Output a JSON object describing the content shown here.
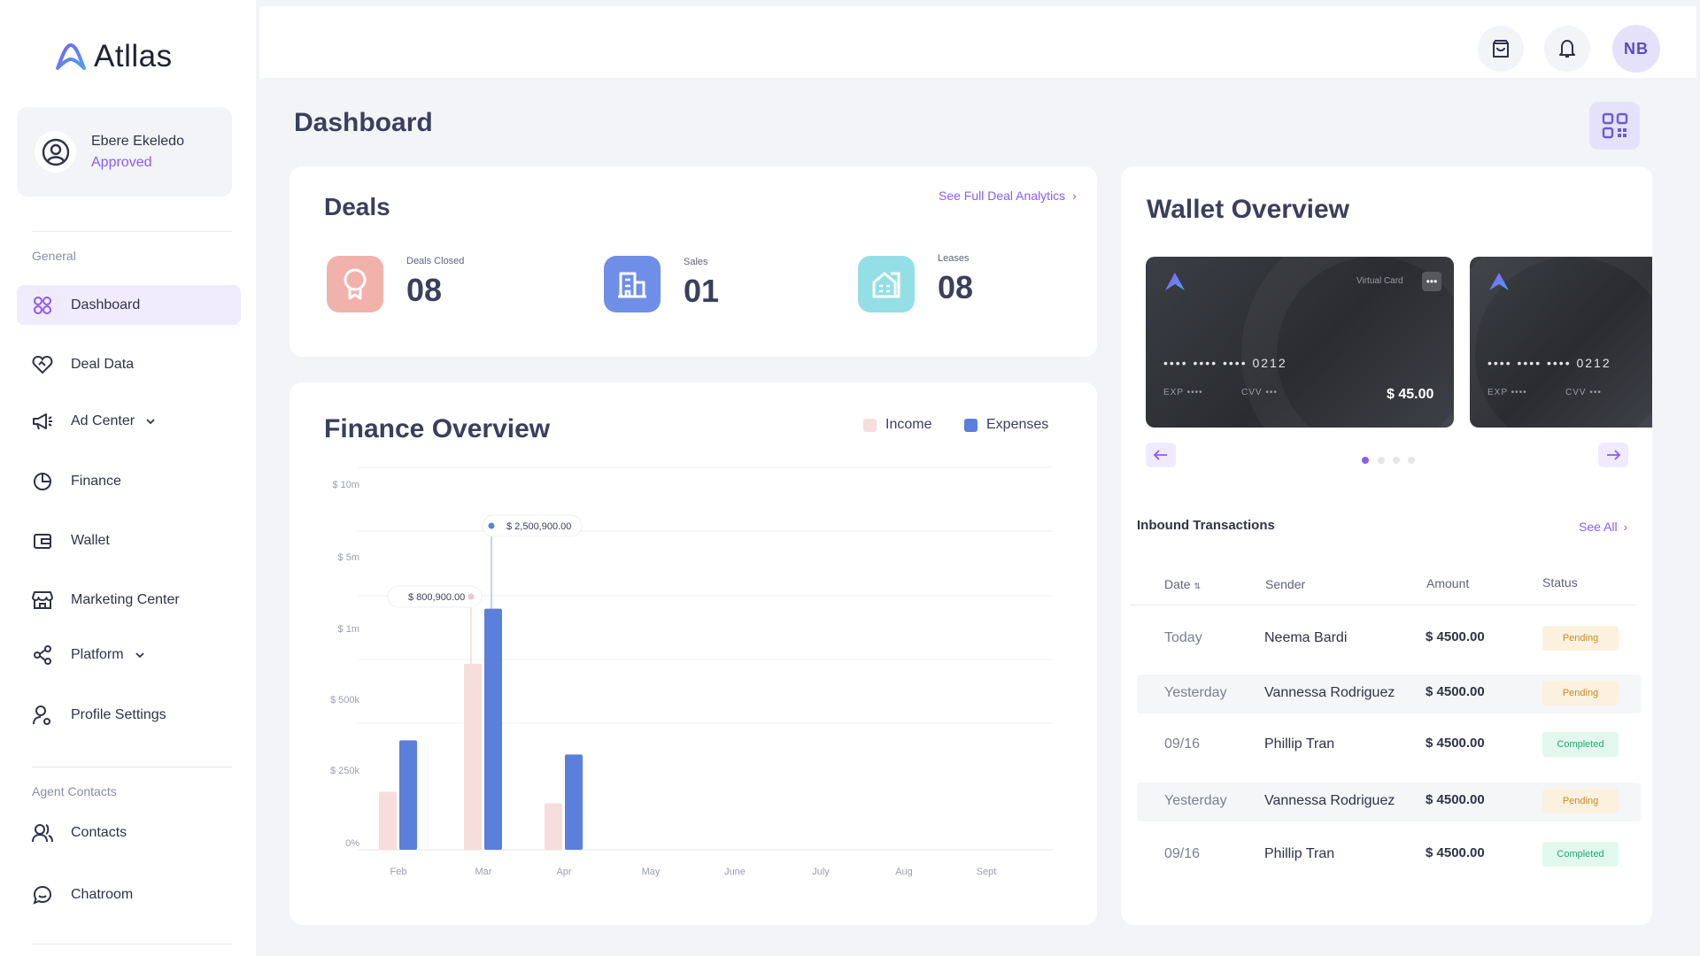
{
  "app": {
    "name": "Atllas"
  },
  "user": {
    "name": "Ebere Ekeledo",
    "status": "Approved",
    "initials": "NB"
  },
  "sidebar": {
    "sections": {
      "general": "General",
      "agent_contacts": "Agent Contacts"
    },
    "items": [
      {
        "label": "Dashboard",
        "icon": "grid-icon"
      },
      {
        "label": "Deal Data",
        "icon": "heart-handshake-icon"
      },
      {
        "label": "Ad Center",
        "icon": "megaphone-icon"
      },
      {
        "label": "Finance",
        "icon": "pie-chart-icon"
      },
      {
        "label": "Wallet",
        "icon": "wallet-icon"
      },
      {
        "label": "Marketing Center",
        "icon": "store-icon"
      },
      {
        "label": "Platform",
        "icon": "share-nodes-icon"
      },
      {
        "label": "Profile Settings",
        "icon": "user-gear-icon"
      },
      {
        "label": "Contacts",
        "icon": "users-icon"
      },
      {
        "label": "Chatroom",
        "icon": "chat-icon"
      }
    ]
  },
  "page": {
    "title": "Dashboard"
  },
  "deals": {
    "title": "Deals",
    "link": "See Full Deal Analytics",
    "stats": [
      {
        "label": "Deals Closed",
        "value": "08",
        "color": "#f2b2ac"
      },
      {
        "label": "Sales",
        "value": "01",
        "color": "#6f8ee8"
      },
      {
        "label": "Leases",
        "value": "08",
        "color": "#94dfe6"
      }
    ]
  },
  "finance": {
    "title": "Finance Overview",
    "legend": {
      "income": "Income",
      "expenses": "Expenses"
    },
    "tooltips": [
      "$ 2,500,900.00",
      "$ 800,900.00"
    ]
  },
  "chart_data": {
    "type": "bar",
    "categories": [
      "Feb",
      "Mar",
      "Apr",
      "May",
      "June",
      "July",
      "Aug",
      "Sept"
    ],
    "y_ticks": [
      "$ 10m",
      "$ 5m",
      "$ 1m",
      "$ 500k",
      "$ 250k",
      "0%"
    ],
    "series": [
      {
        "name": "Income",
        "color": "#f6dedd",
        "values": [
          200000,
          800900,
          160000,
          0,
          0,
          0,
          0,
          0
        ]
      },
      {
        "name": "Expenses",
        "color": "#5b7fdc",
        "values": [
          380000,
          2500900,
          330000,
          0,
          0,
          0,
          0,
          0
        ]
      }
    ],
    "annotations": [
      {
        "category": "Mar",
        "series": "Expenses",
        "text": "$ 2,500,900.00"
      },
      {
        "category": "Mar",
        "series": "Income",
        "text": "$ 800,900.00"
      }
    ],
    "legend": "top-right",
    "grid": true
  },
  "wallet": {
    "title": "Wallet Overview",
    "cards": [
      {
        "type_label": "Virtual Card",
        "number": "•••• •••• •••• 0212",
        "exp": "EXP ••••",
        "cvv": "CVV •••",
        "balance": "$ 45.00"
      },
      {
        "number": "•••• •••• •••• 0212",
        "exp": "EXP ••••",
        "cvv": "CVV •••"
      }
    ]
  },
  "transactions": {
    "title": "Inbound Transactions",
    "see_all": "See All",
    "headers": {
      "date": "Date",
      "sender": "Sender",
      "amount": "Amount",
      "status": "Status"
    },
    "rows": [
      {
        "date": "Today",
        "sender": "Neema Bardi",
        "amount": "$ 4500.00",
        "status": "Pending"
      },
      {
        "date": "Yesterday",
        "sender": "Vannessa Rodriguez",
        "amount": "$ 4500.00",
        "status": "Pending"
      },
      {
        "date": "09/16",
        "sender": "Phillip Tran",
        "amount": "$ 4500.00",
        "status": "Completed"
      },
      {
        "date": "Yesterday",
        "sender": "Vannessa Rodriguez",
        "amount": "$ 4500.00",
        "status": "Pending"
      },
      {
        "date": "09/16",
        "sender": "Phillip Tran",
        "amount": "$ 4500.00",
        "status": "Completed"
      }
    ]
  }
}
